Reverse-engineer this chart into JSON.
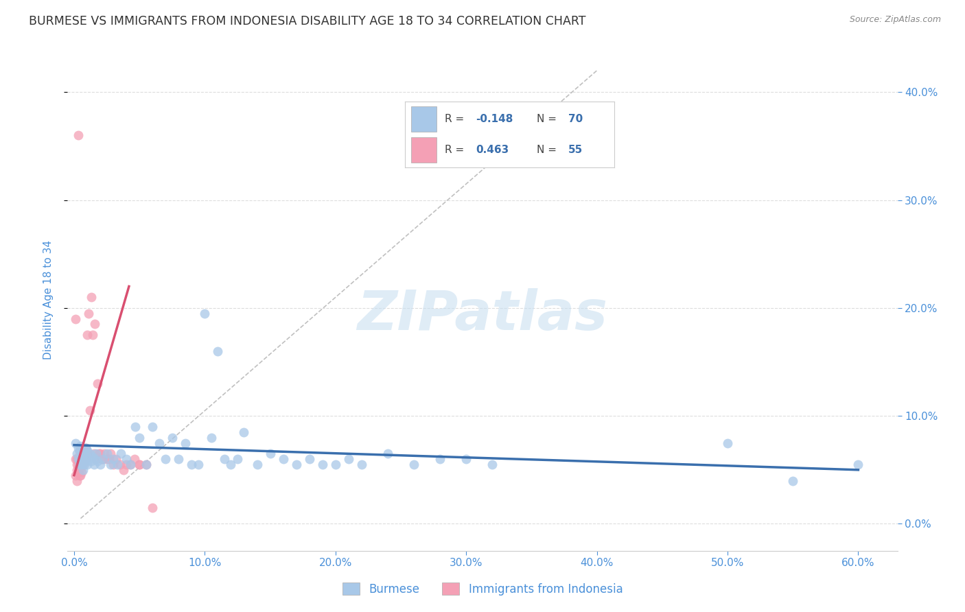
{
  "title": "BURMESE VS IMMIGRANTS FROM INDONESIA DISABILITY AGE 18 TO 34 CORRELATION CHART",
  "source": "Source: ZipAtlas.com",
  "ylabel": "Disability Age 18 to 34",
  "xlim": [
    -0.005,
    0.63
  ],
  "ylim": [
    -0.025,
    0.44
  ],
  "xticks": [
    0.0,
    0.1,
    0.2,
    0.3,
    0.4,
    0.5,
    0.6
  ],
  "xtick_labels": [
    "0.0%",
    "10.0%",
    "20.0%",
    "30.0%",
    "40.0%",
    "50.0%",
    "60.0%"
  ],
  "yticks": [
    0.0,
    0.1,
    0.2,
    0.3,
    0.4
  ],
  "ytick_labels": [
    "0.0%",
    "10.0%",
    "20.0%",
    "30.0%",
    "40.0%"
  ],
  "blue_color": "#a8c8e8",
  "blue_line_color": "#3a6fad",
  "pink_color": "#f4a0b5",
  "pink_line_color": "#d94f70",
  "watermark_text": "ZIPatlas",
  "legend_blue_label": "Burmese",
  "legend_pink_label": "Immigrants from Indonesia",
  "blue_scatter_x": [
    0.001,
    0.002,
    0.003,
    0.003,
    0.004,
    0.004,
    0.005,
    0.005,
    0.006,
    0.006,
    0.007,
    0.007,
    0.008,
    0.008,
    0.009,
    0.009,
    0.01,
    0.01,
    0.011,
    0.012,
    0.013,
    0.014,
    0.015,
    0.016,
    0.017,
    0.018,
    0.02,
    0.022,
    0.025,
    0.028,
    0.03,
    0.033,
    0.036,
    0.04,
    0.043,
    0.047,
    0.05,
    0.055,
    0.06,
    0.065,
    0.07,
    0.075,
    0.08,
    0.085,
    0.09,
    0.095,
    0.1,
    0.105,
    0.11,
    0.115,
    0.12,
    0.125,
    0.13,
    0.14,
    0.15,
    0.16,
    0.17,
    0.18,
    0.19,
    0.2,
    0.21,
    0.22,
    0.24,
    0.26,
    0.28,
    0.3,
    0.32,
    0.5,
    0.55,
    0.6
  ],
  "blue_scatter_y": [
    0.075,
    0.065,
    0.07,
    0.06,
    0.068,
    0.055,
    0.072,
    0.058,
    0.065,
    0.055,
    0.06,
    0.05,
    0.065,
    0.055,
    0.07,
    0.058,
    0.068,
    0.055,
    0.06,
    0.065,
    0.058,
    0.062,
    0.055,
    0.06,
    0.065,
    0.058,
    0.055,
    0.06,
    0.065,
    0.055,
    0.06,
    0.055,
    0.065,
    0.06,
    0.055,
    0.09,
    0.08,
    0.055,
    0.09,
    0.075,
    0.06,
    0.08,
    0.06,
    0.075,
    0.055,
    0.055,
    0.195,
    0.08,
    0.16,
    0.06,
    0.055,
    0.06,
    0.085,
    0.055,
    0.065,
    0.06,
    0.055,
    0.06,
    0.055,
    0.055,
    0.06,
    0.055,
    0.065,
    0.055,
    0.06,
    0.06,
    0.055,
    0.075,
    0.04,
    0.055
  ],
  "pink_scatter_x": [
    0.001,
    0.001,
    0.002,
    0.002,
    0.002,
    0.003,
    0.003,
    0.003,
    0.004,
    0.004,
    0.004,
    0.005,
    0.005,
    0.005,
    0.006,
    0.006,
    0.006,
    0.007,
    0.007,
    0.008,
    0.008,
    0.009,
    0.009,
    0.01,
    0.01,
    0.011,
    0.012,
    0.013,
    0.014,
    0.015,
    0.016,
    0.017,
    0.018,
    0.019,
    0.02,
    0.021,
    0.022,
    0.023,
    0.025,
    0.027,
    0.028,
    0.03,
    0.032,
    0.035,
    0.038,
    0.04,
    0.043,
    0.046,
    0.05,
    0.055,
    0.06,
    0.001,
    0.002,
    0.003,
    0.05
  ],
  "pink_scatter_y": [
    0.06,
    0.045,
    0.055,
    0.04,
    0.05,
    0.062,
    0.048,
    0.055,
    0.058,
    0.045,
    0.068,
    0.052,
    0.06,
    0.045,
    0.055,
    0.065,
    0.048,
    0.06,
    0.055,
    0.065,
    0.058,
    0.07,
    0.06,
    0.175,
    0.065,
    0.195,
    0.105,
    0.21,
    0.175,
    0.065,
    0.185,
    0.06,
    0.13,
    0.065,
    0.065,
    0.06,
    0.06,
    0.065,
    0.06,
    0.06,
    0.065,
    0.055,
    0.06,
    0.055,
    0.05,
    0.055,
    0.055,
    0.06,
    0.055,
    0.055,
    0.015,
    0.19,
    0.06,
    0.36,
    0.055
  ],
  "background_color": "#ffffff",
  "grid_color": "#dddddd",
  "title_color": "#333333",
  "tick_color": "#4a90d9",
  "ylabel_color": "#4a90d9",
  "blue_trend_x": [
    0.0,
    0.6
  ],
  "blue_trend_y": [
    0.073,
    0.05
  ],
  "pink_trend_x": [
    0.0,
    0.042
  ],
  "pink_trend_y": [
    0.045,
    0.22
  ],
  "dash_line_x": [
    0.005,
    0.4
  ],
  "dash_line_y": [
    0.005,
    0.42
  ]
}
